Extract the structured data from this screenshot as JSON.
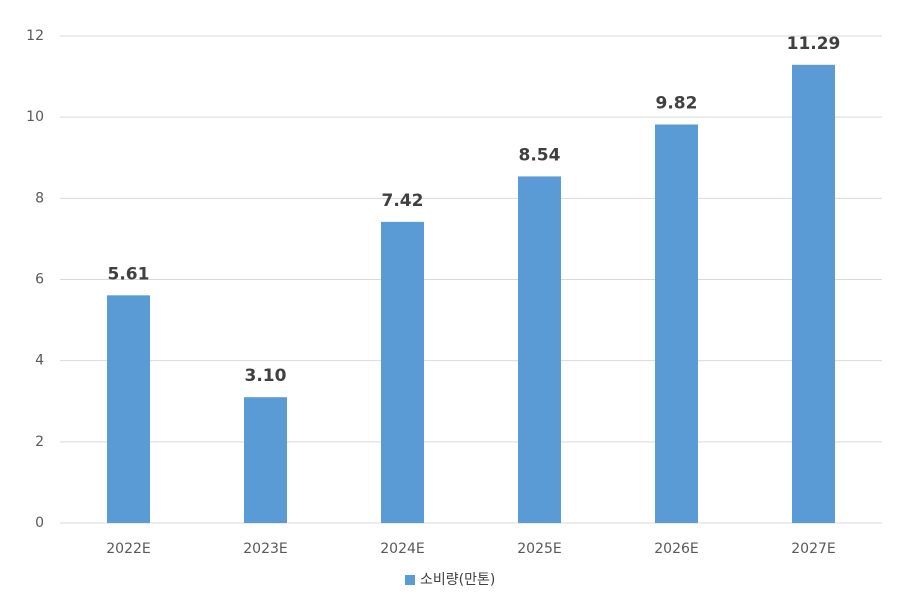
{
  "chart_data": {
    "type": "bar",
    "categories": [
      "2022E",
      "2023E",
      "2024E",
      "2025E",
      "2026E",
      "2027E"
    ],
    "series": [
      {
        "name": "소비량(만톤)",
        "color": "#5b9bd5",
        "values": [
          5.61,
          3.1,
          7.42,
          8.54,
          9.82,
          11.29
        ],
        "value_labels": [
          "5.61",
          "3.10",
          "7.42",
          "8.54",
          "9.82",
          "11.29"
        ]
      }
    ],
    "ylim": [
      0,
      12
    ],
    "yticks": [
      0,
      2,
      4,
      6,
      8,
      10,
      12
    ],
    "grid": true,
    "legend": "bottom"
  }
}
